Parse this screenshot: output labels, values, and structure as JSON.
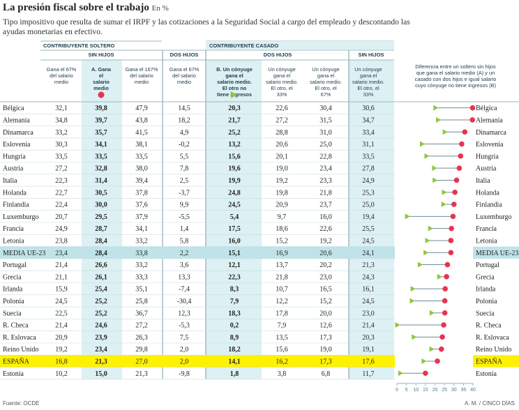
{
  "title": "La presión fiscal sobre el trabajo",
  "unit": "En %",
  "subtitle": "Tipo impositivo que resulta de sumar el IRPF y las cotizaciones a la Seguridad Social a cargo del empleado y descontando las ayudas monetarias en efectivo.",
  "groups": {
    "soltero": "CONTRIBUYENTE SOLTERO",
    "casado": "CONTRIBUYENTE CASADO",
    "sin_hijos": "SIN HIJOS",
    "dos_hijos": "DOS HIJOS",
    "dos_hijos_casado": "DOS HIJOS",
    "sin_hijos_casado": "SIN HIJOS"
  },
  "columns": [
    "Gana el 67% del salario medio",
    "A. Gana el salario medio",
    "Gana el 167% del salario medio",
    "Gana el 67% del salario medio",
    "B. Un cónyuge gana el salario medio. El otro no tiene ingresos",
    "Un cónyuge gana el salario medio. El otro, el 33%",
    "Un cónyuge gana el salario medio. El otro, el 67%",
    "Un cónyuge gana el salario medio. El otro, el 33%"
  ],
  "dot_header": "Diferencia entre un soltero sin hijos que gana el salario medio (A) y un casado con dos hijos e igual salario cuyo cónyuge no tiene ingresos (B)",
  "colors": {
    "red": "#e8344e",
    "green": "#8dc63f",
    "highlight": "#fff200",
    "media": "#bfe3e9",
    "shade": "#ddf0f3",
    "line": "#6f8a99"
  },
  "chart_data": {
    "type": "table",
    "title": "La presión fiscal sobre el trabajo",
    "unit": "En %",
    "rows": [
      {
        "country": "Bélgica",
        "values": [
          "32,1",
          "39,8",
          "47,9",
          "14,5",
          "20,3",
          "22,6",
          "30,4",
          "30,6"
        ],
        "a": 39.8,
        "b": 20.3
      },
      {
        "country": "Alemania",
        "values": [
          "34,8",
          "39,7",
          "43,8",
          "18,2",
          "21,7",
          "27,2",
          "31,5",
          "34,7"
        ],
        "a": 39.7,
        "b": 21.7
      },
      {
        "country": "Dinamarca",
        "values": [
          "33,2",
          "35,7",
          "41,5",
          "4,9",
          "25,2",
          "28,8",
          "31,0",
          "33,4"
        ],
        "a": 35.7,
        "b": 25.2
      },
      {
        "country": "Eslovenia",
        "values": [
          "30,3",
          "34,1",
          "38,1",
          "-0,2",
          "13,2",
          "20,6",
          "25,0",
          "31,1"
        ],
        "a": 34.1,
        "b": 13.2
      },
      {
        "country": "Hungría",
        "values": [
          "33,5",
          "33,5",
          "33,5",
          "5,5",
          "15,6",
          "20,1",
          "22,8",
          "33,5"
        ],
        "a": 33.5,
        "b": 15.6
      },
      {
        "country": "Austria",
        "values": [
          "27,2",
          "32,8",
          "38,0",
          "7,8",
          "19,6",
          "19,0",
          "23,4",
          "27,8"
        ],
        "a": 32.8,
        "b": 19.6
      },
      {
        "country": "Italia",
        "values": [
          "22,3",
          "31,4",
          "39,4",
          "2,5",
          "19,9",
          "19,2",
          "23,3",
          "24,9"
        ],
        "a": 31.4,
        "b": 19.9
      },
      {
        "country": "Holanda",
        "values": [
          "22,7",
          "30,5",
          "37,8",
          "-3,7",
          "24,8",
          "19,8",
          "21,8",
          "25,3"
        ],
        "a": 30.5,
        "b": 24.8
      },
      {
        "country": "Finlandia",
        "values": [
          "22,4",
          "30,0",
          "37,6",
          "9,9",
          "24,5",
          "20,9",
          "23,7",
          "25,0"
        ],
        "a": 30.0,
        "b": 24.5
      },
      {
        "country": "Luxemburgo",
        "values": [
          "20,7",
          "29,5",
          "37,9",
          "-5,5",
          "5,4",
          "9,7",
          "16,0",
          "19,4"
        ],
        "a": 29.5,
        "b": 5.4
      },
      {
        "country": "Francia",
        "values": [
          "24,9",
          "28,7",
          "34,1",
          "1,4",
          "17,5",
          "18,6",
          "22,6",
          "25,5"
        ],
        "a": 28.7,
        "b": 17.5
      },
      {
        "country": "Letonia",
        "values": [
          "23,8",
          "28,4",
          "33,2",
          "5,8",
          "16,0",
          "15,2",
          "19,2",
          "24,5"
        ],
        "a": 28.4,
        "b": 16.0
      },
      {
        "country": "MEDIA UE-23",
        "values": [
          "23,4",
          "28,4",
          "33,8",
          "2,2",
          "15,1",
          "16,9",
          "20,6",
          "24,1"
        ],
        "a": 28.4,
        "b": 15.1,
        "style": "media"
      },
      {
        "country": "Portugal",
        "values": [
          "21,4",
          "26,6",
          "33,2",
          "3,6",
          "12,1",
          "13,7",
          "20,2",
          "21,3"
        ],
        "a": 26.6,
        "b": 12.1
      },
      {
        "country": "Grecia",
        "values": [
          "21,1",
          "26,1",
          "33,3",
          "13,3",
          "22,3",
          "21,8",
          "23,0",
          "24,3"
        ],
        "a": 26.1,
        "b": 22.3
      },
      {
        "country": "Irlanda",
        "values": [
          "15,9",
          "25,4",
          "35,1",
          "-7,4",
          "8,3",
          "10,7",
          "16,5",
          "16,1"
        ],
        "a": 25.4,
        "b": 8.3
      },
      {
        "country": "Polonia",
        "values": [
          "24,5",
          "25,2",
          "25,8",
          "-30,4",
          "7,9",
          "12,2",
          "15,2",
          "24,5"
        ],
        "a": 25.2,
        "b": 7.9
      },
      {
        "country": "Suecia",
        "values": [
          "22,5",
          "25,2",
          "36,7",
          "12,3",
          "18,3",
          "17,8",
          "20,0",
          "23,0"
        ],
        "a": 25.2,
        "b": 18.3
      },
      {
        "country": "R. Checa",
        "values": [
          "21,4",
          "24,6",
          "27,2",
          "-5,3",
          "0,2",
          "7,9",
          "12,6",
          "21,4"
        ],
        "a": 24.6,
        "b": 0.2
      },
      {
        "country": "R. Eslovaca",
        "values": [
          "20,9",
          "23,9",
          "26,3",
          "7,5",
          "8,9",
          "13,5",
          "17,3",
          "20,3"
        ],
        "a": 23.9,
        "b": 8.9
      },
      {
        "country": "Reino Unido",
        "values": [
          "19,2",
          "23,4",
          "29,8",
          "2,0",
          "18,2",
          "15,6",
          "19,0",
          "19,1"
        ],
        "a": 23.4,
        "b": 18.2
      },
      {
        "country": "ESPAÑA",
        "values": [
          "16,8",
          "21,3",
          "27,0",
          "2,0",
          "14,1",
          "16,2",
          "17,3",
          "17,6"
        ],
        "a": 21.3,
        "b": 14.1,
        "style": "spain"
      },
      {
        "country": "Estonia",
        "values": [
          "10,2",
          "15,0",
          "21,3",
          "-9,8",
          "1,8",
          "3,8",
          "6,8",
          "11,7"
        ],
        "a": 15.0,
        "b": 1.8
      }
    ],
    "dot_axis": {
      "min": 0,
      "max": 40,
      "ticks": [
        0,
        5,
        10,
        15,
        20,
        25,
        30,
        35,
        40
      ],
      "tick_labels": [
        "0",
        "5",
        "10",
        "15",
        "20",
        "25",
        "30",
        "35",
        "40"
      ]
    }
  },
  "source": "Fuente: OCDE",
  "credit": "A. M. / CINCO DÍAS"
}
